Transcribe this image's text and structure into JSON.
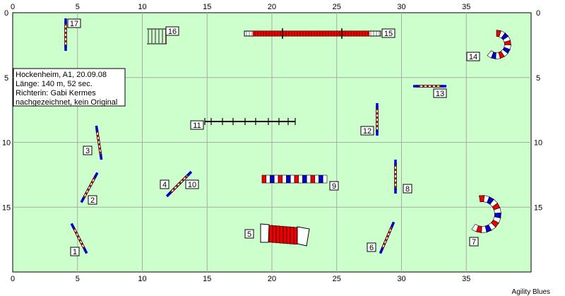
{
  "course": {
    "info_lines": [
      "Hockenheim, A1, 20.09.08",
      "Länge: 140 m, 52 sec.",
      "Richterin: Gabi Kermes",
      "nachgezeichnet, kein Original"
    ],
    "footer": "Agility Blues"
  },
  "axes": {
    "x_ticks": [
      "0",
      "5",
      "10",
      "15",
      "20",
      "25",
      "30",
      "35"
    ],
    "y_ticks": [
      "0",
      "5",
      "10",
      "15"
    ],
    "x_range": [
      0,
      40
    ],
    "y_range": [
      0,
      20
    ]
  },
  "colors": {
    "field": "#ccffcc",
    "grid": "#aaaaaa",
    "red": "#ee0000",
    "blue": "#0000cc",
    "white": "#ffffff"
  },
  "obstacles": [
    {
      "number": "1",
      "type": "jump"
    },
    {
      "number": "2",
      "type": "jump"
    },
    {
      "number": "3",
      "type": "jump"
    },
    {
      "number": "4",
      "type": "jump"
    },
    {
      "number": "5",
      "type": "tunnel-closed"
    },
    {
      "number": "6",
      "type": "jump"
    },
    {
      "number": "7",
      "type": "tunnel"
    },
    {
      "number": "8",
      "type": "jump"
    },
    {
      "number": "9",
      "type": "tunnel"
    },
    {
      "number": "10",
      "type": "jump"
    },
    {
      "number": "11",
      "type": "a-frame"
    },
    {
      "number": "12",
      "type": "jump"
    },
    {
      "number": "13",
      "type": "jump"
    },
    {
      "number": "14",
      "type": "tunnel"
    },
    {
      "number": "15",
      "type": "dogwalk"
    },
    {
      "number": "16",
      "type": "weave-poles"
    },
    {
      "number": "17",
      "type": "jump"
    }
  ]
}
